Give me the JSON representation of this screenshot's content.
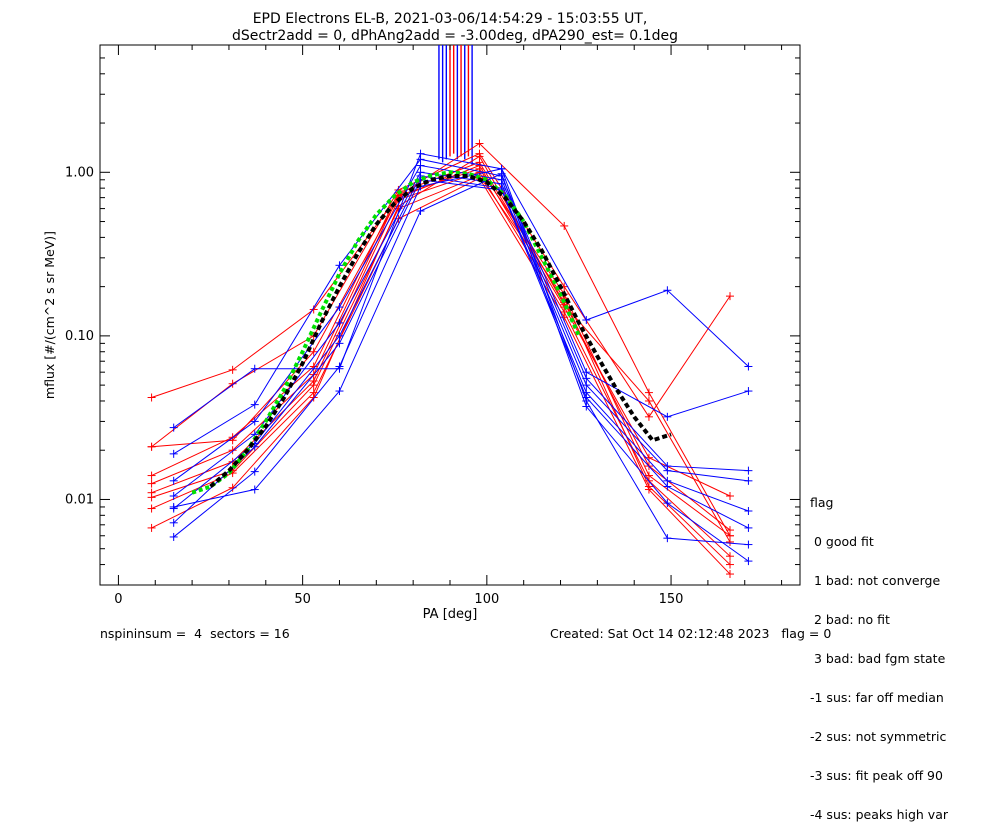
{
  "title_line1": "EPD Electrons EL-B, 2021-03-06/14:54:29 - 15:03:55 UT,",
  "title_line2": "dSectr2add = 0, dPhAng2add = -3.00deg, dPA290_est=   0.1deg",
  "footer": {
    "left": "nspininsum =  4  sectors = 16",
    "right": "Created: Sat Oct 14 02:12:48 2023   flag = 0"
  },
  "legend": {
    "title": "flag",
    "items": [
      " 0 good fit",
      " 1 bad: not converge",
      " 2 bad: no fit",
      " 3 bad: bad fgm state",
      "-1 sus: far off median",
      "-2 sus: not symmetric",
      "-3 sus: fit peak off 90",
      "-4 sus: peaks high var"
    ]
  },
  "colors": {
    "red": "#ff0000",
    "blue": "#0000ff",
    "green": "#00e000",
    "black": "#000000"
  },
  "chart_data": {
    "type": "line",
    "xlabel": "PA [deg]",
    "ylabel": "mflux [#/(cm^2 s sr MeV)]",
    "xlim": [
      -5,
      185
    ],
    "ylim": [
      0.003,
      6.0
    ],
    "yscale": "log",
    "xticks": [
      0,
      50,
      100,
      150
    ],
    "xtick_labels": [
      "0",
      "50",
      "100",
      "150"
    ],
    "yticks": [
      0.01,
      0.1,
      1.0
    ],
    "ytick_labels": [
      "0.01",
      "0.10",
      "1.00"
    ],
    "series": [
      {
        "color": "red",
        "x": [
          9,
          31,
          53,
          76,
          98,
          121,
          144,
          166
        ],
        "y": [
          0.042,
          0.062,
          0.145,
          0.72,
          1.5,
          0.47,
          0.045,
          0.006
        ]
      },
      {
        "color": "red",
        "x": [
          9,
          31,
          53,
          76,
          98,
          121,
          144,
          166
        ],
        "y": [
          0.021,
          0.051,
          0.1,
          0.78,
          1.3,
          0.2,
          0.032,
          0.175
        ]
      },
      {
        "color": "red",
        "x": [
          9,
          31,
          53,
          76,
          98,
          121,
          144,
          166
        ],
        "y": [
          0.021,
          0.023,
          0.08,
          0.7,
          1.1,
          0.15,
          0.018,
          0.0105
        ]
      },
      {
        "color": "red",
        "x": [
          9,
          31,
          53,
          76,
          98,
          121,
          144,
          166
        ],
        "y": [
          0.014,
          0.024,
          0.065,
          0.75,
          1.15,
          0.16,
          0.016,
          0.0065
        ]
      },
      {
        "color": "red",
        "x": [
          9,
          31,
          53,
          76,
          98,
          121,
          144,
          166
        ],
        "y": [
          0.0125,
          0.02,
          0.058,
          0.72,
          1.05,
          0.18,
          0.014,
          0.006
        ]
      },
      {
        "color": "red",
        "x": [
          9,
          31,
          53,
          76,
          98,
          121,
          144,
          166
        ],
        "y": [
          0.011,
          0.017,
          0.053,
          0.68,
          1.0,
          0.14,
          0.013,
          0.0045
        ]
      },
      {
        "color": "red",
        "x": [
          9,
          31,
          53,
          76,
          98,
          121,
          144,
          166
        ],
        "y": [
          0.0103,
          0.015,
          0.05,
          0.6,
          0.95,
          0.17,
          0.012,
          0.004
        ]
      },
      {
        "color": "red",
        "x": [
          9,
          31,
          53,
          76,
          98,
          121,
          144,
          166
        ],
        "y": [
          0.0088,
          0.0145,
          0.045,
          0.52,
          0.92,
          0.13,
          0.0115,
          0.0035
        ]
      },
      {
        "color": "red",
        "x": [
          9,
          31,
          53,
          76,
          98,
          121,
          144,
          166
        ],
        "y": [
          0.0067,
          0.0118,
          0.042,
          0.62,
          1.25,
          0.155,
          0.04,
          0.0055
        ]
      },
      {
        "color": "blue",
        "x": [
          15,
          37,
          60,
          82,
          104,
          127,
          149,
          171
        ],
        "y": [
          0.0275,
          0.063,
          0.063,
          1.3,
          1.05,
          0.125,
          0.19,
          0.065
        ]
      },
      {
        "color": "blue",
        "x": [
          15,
          37,
          60,
          82,
          104,
          127,
          149,
          171
        ],
        "y": [
          0.019,
          0.038,
          0.27,
          1.2,
          0.95,
          0.06,
          0.032,
          0.046
        ]
      },
      {
        "color": "blue",
        "x": [
          15,
          37,
          60,
          82,
          104,
          127,
          149,
          171
        ],
        "y": [
          0.013,
          0.03,
          0.15,
          1.1,
          0.9,
          0.055,
          0.016,
          0.015
        ]
      },
      {
        "color": "blue",
        "x": [
          15,
          37,
          60,
          82,
          104,
          127,
          149,
          171
        ],
        "y": [
          0.0105,
          0.025,
          0.12,
          1.0,
          0.85,
          0.05,
          0.015,
          0.013
        ]
      },
      {
        "color": "blue",
        "x": [
          15,
          37,
          60,
          82,
          104,
          127,
          149,
          171
        ],
        "y": [
          0.0088,
          0.022,
          0.1,
          0.95,
          0.8,
          0.045,
          0.013,
          0.0085
        ]
      },
      {
        "color": "blue",
        "x": [
          15,
          37,
          60,
          82,
          104,
          127,
          149,
          171
        ],
        "y": [
          0.0072,
          0.021,
          0.09,
          0.9,
          0.78,
          0.042,
          0.012,
          0.0067
        ]
      },
      {
        "color": "blue",
        "x": [
          15,
          37,
          60,
          82,
          104,
          127,
          149,
          171
        ],
        "y": [
          0.0059,
          0.0148,
          0.065,
          0.82,
          1.05,
          0.04,
          0.0058,
          0.0053
        ]
      },
      {
        "color": "blue",
        "x": [
          15,
          37,
          60,
          82,
          104,
          127,
          149,
          171
        ],
        "y": [
          0.009,
          0.0115,
          0.046,
          0.58,
          0.98,
          0.037,
          0.0095,
          0.0042
        ]
      }
    ],
    "spikes": {
      "x": [
        87,
        88,
        89,
        90,
        91,
        92,
        93,
        94,
        95,
        96
      ],
      "colors": [
        "blue",
        "blue",
        "blue",
        "red",
        "red",
        "blue",
        "red",
        "blue",
        "red",
        "blue"
      ],
      "y_base": [
        1.2,
        1.15,
        1.2,
        1.25,
        1.3,
        1.2,
        1.25,
        1.2,
        1.25,
        1.1
      ]
    },
    "fits": [
      {
        "color": "green",
        "style": "dotted",
        "x": [
          20,
          25,
          30,
          35,
          40,
          45,
          50,
          55,
          60,
          65,
          70,
          75,
          80,
          85,
          90,
          95,
          100,
          105,
          110,
          115,
          120,
          125
        ],
        "y": [
          0.011,
          0.012,
          0.0145,
          0.02,
          0.03,
          0.047,
          0.08,
          0.14,
          0.24,
          0.38,
          0.55,
          0.72,
          0.87,
          0.96,
          1.0,
          0.98,
          0.9,
          0.72,
          0.5,
          0.3,
          0.18,
          0.1
        ]
      },
      {
        "color": "black",
        "style": "dashed",
        "x": [
          25,
          30,
          35,
          40,
          45,
          50,
          55,
          60,
          65,
          70,
          75,
          80,
          85,
          90,
          95,
          100,
          105,
          110,
          115,
          120,
          125,
          130,
          135,
          140,
          145,
          150
        ],
        "y": [
          0.012,
          0.015,
          0.02,
          0.028,
          0.042,
          0.068,
          0.12,
          0.2,
          0.32,
          0.48,
          0.65,
          0.8,
          0.9,
          0.95,
          0.95,
          0.87,
          0.7,
          0.5,
          0.33,
          0.2,
          0.12,
          0.075,
          0.048,
          0.032,
          0.023,
          0.025
        ]
      }
    ]
  }
}
